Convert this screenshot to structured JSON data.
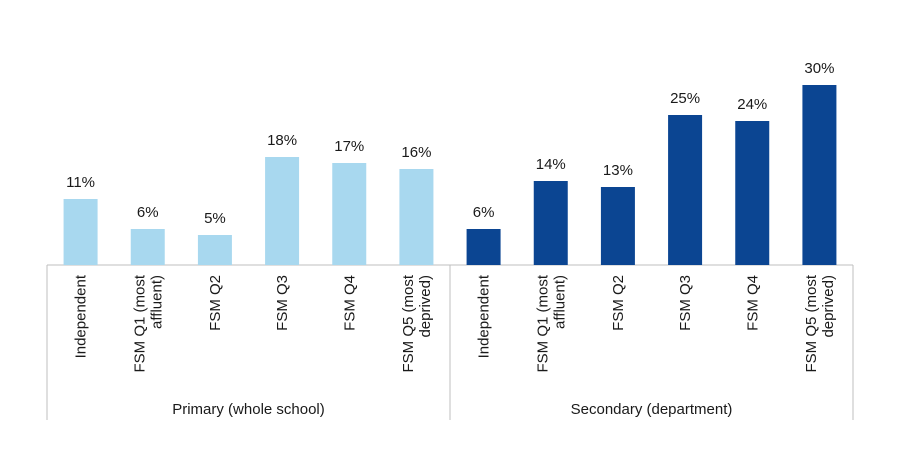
{
  "chart_data": {
    "type": "bar",
    "title": "",
    "xlabel": "",
    "ylabel": "",
    "ylim": [
      0,
      30
    ],
    "value_suffix": "%",
    "groups": [
      {
        "name": "Primary (whole school)",
        "color": "#a8d8ef",
        "bars": [
          {
            "category": [
              "Independent"
            ],
            "value": 11
          },
          {
            "category": [
              "FSM Q1 (most",
              "affluent)"
            ],
            "value": 6
          },
          {
            "category": [
              "FSM Q2"
            ],
            "value": 5
          },
          {
            "category": [
              "FSM Q3"
            ],
            "value": 18
          },
          {
            "category": [
              "FSM Q4"
            ],
            "value": 17
          },
          {
            "category": [
              "FSM Q5 (most",
              "deprived)"
            ],
            "value": 16
          }
        ]
      },
      {
        "name": "Secondary (department)",
        "color": "#0b4592",
        "bars": [
          {
            "category": [
              "Independent"
            ],
            "value": 6
          },
          {
            "category": [
              "FSM Q1 (most",
              "affluent)"
            ],
            "value": 14
          },
          {
            "category": [
              "FSM Q2"
            ],
            "value": 13
          },
          {
            "category": [
              "FSM Q3"
            ],
            "value": 25
          },
          {
            "category": [
              "FSM Q4"
            ],
            "value": 24
          },
          {
            "category": [
              "FSM Q5 (most",
              "deprived)"
            ],
            "value": 30
          }
        ]
      }
    ]
  }
}
